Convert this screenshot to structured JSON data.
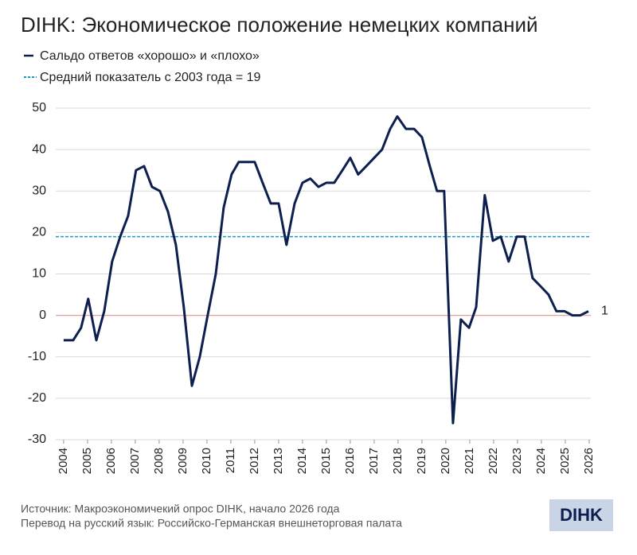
{
  "chart_data": {
    "type": "line",
    "title": "DIHK: Экономическое положение немецких компаний",
    "x": [
      2004.0,
      2004.4,
      2004.73,
      2005.03,
      2005.37,
      2005.7,
      2006.03,
      2006.37,
      2006.7,
      2007.03,
      2007.37,
      2007.7,
      2008.03,
      2008.37,
      2008.7,
      2009.03,
      2009.37,
      2009.7,
      2010.03,
      2010.37,
      2010.7,
      2011.03,
      2011.33,
      2011.67,
      2012.0,
      2012.33,
      2012.67,
      2013.0,
      2013.33,
      2013.67,
      2014.0,
      2014.33,
      2014.67,
      2015.0,
      2015.33,
      2015.67,
      2016.0,
      2016.33,
      2016.67,
      2017.0,
      2017.33,
      2017.67,
      2017.97,
      2018.33,
      2018.67,
      2019.0,
      2019.33,
      2019.63,
      2019.93,
      2020.3,
      2020.63,
      2020.97,
      2021.27,
      2021.63,
      2021.97,
      2022.3,
      2022.63,
      2022.97,
      2023.3,
      2023.63,
      2023.97,
      2024.3,
      2024.63,
      2024.97,
      2025.3,
      2025.63,
      2025.97
    ],
    "series": [
      {
        "name": "Сальдо ответов «хорошо» и «плохо»",
        "color": "#0d1f4f",
        "values": [
          -6,
          -6,
          -3,
          4,
          -6,
          1,
          13,
          19,
          24,
          35,
          36,
          31,
          30,
          25,
          17,
          2,
          -17,
          -10,
          0,
          10,
          26,
          34,
          37,
          37,
          37,
          32,
          27,
          27,
          17,
          27,
          32,
          33,
          31,
          32,
          32,
          35,
          38,
          34,
          36,
          38,
          40,
          45,
          48,
          45,
          45,
          43,
          36,
          30,
          30,
          -26,
          -1,
          -3,
          2,
          29,
          18,
          19,
          13,
          19,
          19,
          9,
          7,
          5,
          1,
          1,
          0,
          0,
          1
        ]
      }
    ],
    "reference_line": {
      "label": "Средний показатель с 2003 года = 19",
      "value": 19,
      "color": "#1a9bbf"
    },
    "zero_line_color": "#e2a39f",
    "xlim": [
      2003.67,
      2026.07
    ],
    "xticks": [
      2004,
      2005,
      2006,
      2007,
      2008,
      2009,
      2010,
      2011,
      2012,
      2013,
      2014,
      2015,
      2016,
      2017,
      2018,
      2019,
      2020,
      2021,
      2022,
      2023,
      2024,
      2025,
      2026
    ],
    "ylim": [
      -30,
      50
    ],
    "yticks": [
      -30,
      -20,
      -10,
      0,
      10,
      20,
      30,
      40,
      50
    ],
    "grid": true,
    "source": "Источник: Макроэкономичекий опрос DIHK, начало 2026 года",
    "translation": "Перевод на русский язык: Российско-Германская внешнеторговая палата",
    "logo": "DIHK"
  }
}
